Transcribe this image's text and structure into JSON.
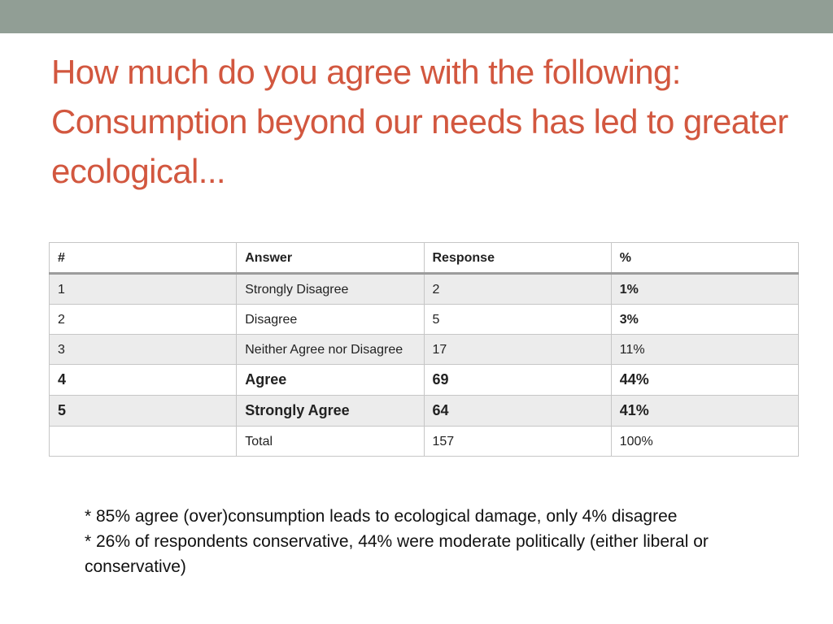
{
  "colors": {
    "top_bar": "#919e95",
    "title": "#d2573f"
  },
  "slide": {
    "title": "How much do you agree with the following: Consumption beyond our needs has led to greater ecological..."
  },
  "table": {
    "headers": [
      "#",
      "Answer",
      "Response",
      "%"
    ],
    "rows": [
      [
        "1",
        "Strongly Disagree",
        "2",
        "1%"
      ],
      [
        "2",
        "Disagree",
        "5",
        "3%"
      ],
      [
        "3",
        "Neither Agree nor Disagree",
        "17",
        "11%"
      ],
      [
        "4",
        "Agree",
        "69",
        "44%"
      ],
      [
        "5",
        "Strongly Agree",
        "64",
        "41%"
      ],
      [
        "",
        "Total",
        "157",
        "100%"
      ]
    ]
  },
  "notes": [
    "* 85% agree (over)consumption leads to ecological damage, only 4% disagree",
    "* 26% of respondents conservative, 44% were moderate politically (either liberal or conservative)"
  ]
}
